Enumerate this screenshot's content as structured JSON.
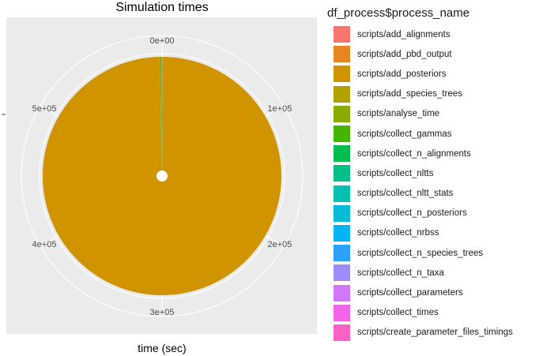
{
  "chart_data": {
    "type": "pie",
    "title": "Simulation times",
    "xlabel": "time (sec)",
    "ylabel": "",
    "legend_title": "df_process$process_name",
    "legend_position": "right",
    "grid": true,
    "ticks": [
      {
        "value": 0,
        "label": "0e+00"
      },
      {
        "value": 100000,
        "label": "1e+05"
      },
      {
        "value": 200000,
        "label": "2e+05"
      },
      {
        "value": 300000,
        "label": "3e+05"
      },
      {
        "value": 400000,
        "label": "4e+05"
      },
      {
        "value": 500000,
        "label": "5e+05"
      }
    ],
    "total": 600000,
    "series": [
      {
        "name": "scripts/add_alignments",
        "value": 600,
        "color": "#F8766D"
      },
      {
        "name": "scripts/add_pbd_output",
        "value": 100,
        "color": "#E7851E"
      },
      {
        "name": "scripts/add_posteriors",
        "value": 597500,
        "color": "#D09400"
      },
      {
        "name": "scripts/add_species_trees",
        "value": 100,
        "color": "#B2A100"
      },
      {
        "name": "scripts/analyse_time",
        "value": 400,
        "color": "#89AC00"
      },
      {
        "name": "scripts/collect_gammas",
        "value": 1000,
        "color": "#45B500"
      },
      {
        "name": "scripts/collect_n_alignments",
        "value": 20,
        "color": "#00BC51"
      },
      {
        "name": "scripts/collect_nltts",
        "value": 20,
        "color": "#00C087"
      },
      {
        "name": "scripts/collect_nltt_stats",
        "value": 20,
        "color": "#00C0B2"
      },
      {
        "name": "scripts/collect_n_posteriors",
        "value": 20,
        "color": "#00BCD6"
      },
      {
        "name": "scripts/collect_nrbss",
        "value": 20,
        "color": "#00B3F2"
      },
      {
        "name": "scripts/collect_n_species_trees",
        "value": 20,
        "color": "#29A3FF"
      },
      {
        "name": "scripts/collect_n_taxa",
        "value": 20,
        "color": "#9C8DFF"
      },
      {
        "name": "scripts/collect_parameters",
        "value": 20,
        "color": "#D277FF"
      },
      {
        "name": "scripts/collect_times",
        "value": 20,
        "color": "#F166E8"
      },
      {
        "name": "scripts/create_parameter_files_timings",
        "value": 100,
        "color": "#FF61C7"
      }
    ]
  }
}
